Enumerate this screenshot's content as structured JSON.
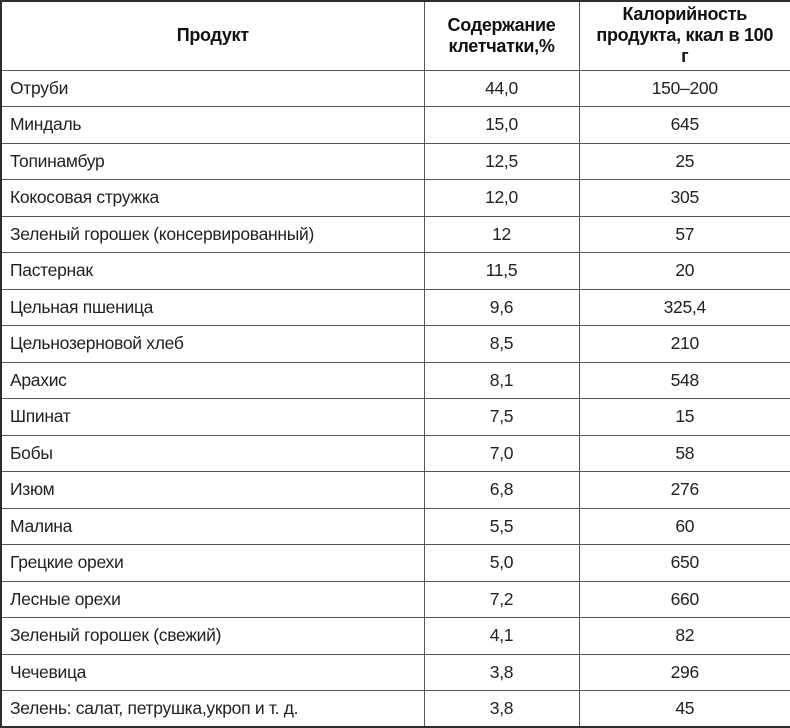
{
  "colors": {
    "background": "#ffffff",
    "border_outer": "#2e2e2e",
    "border_inner": "#565656",
    "text": "#222222"
  },
  "chart_data": {
    "type": "table",
    "columns": [
      "Продукт",
      "Содержание клетчатки,%",
      "Калорийность продукта, ккал в 100 г"
    ],
    "rows": [
      [
        "Отруби",
        "44,0",
        "150–200"
      ],
      [
        "Миндаль",
        "15,0",
        "645"
      ],
      [
        "Топинамбур",
        "12,5",
        "25"
      ],
      [
        "Кокосовая стружка",
        "12,0",
        "305"
      ],
      [
        "Зеленый горошек (консервированный)",
        "12",
        "57"
      ],
      [
        "Пастернак",
        "11,5",
        "20"
      ],
      [
        "Цельная пшеница",
        "9,6",
        "325,4"
      ],
      [
        "Цельнозерновой хлеб",
        "8,5",
        "210"
      ],
      [
        "Арахис",
        "8,1",
        "548"
      ],
      [
        "Шпинат",
        "7,5",
        "15"
      ],
      [
        "Бобы",
        "7,0",
        "58"
      ],
      [
        "Изюм",
        "6,8",
        "276"
      ],
      [
        "Малина",
        "5,5",
        "60"
      ],
      [
        "Грецкие орехи",
        "5,0",
        "650"
      ],
      [
        "Лесные орехи",
        "7,2",
        "660"
      ],
      [
        "Зеленый горошек (свежий)",
        "4,1",
        "82"
      ],
      [
        "Чечевица",
        "3,8",
        "296"
      ],
      [
        "Зелень: салат, петрушка,укроп и т. д.",
        "3,8",
        "45"
      ]
    ]
  }
}
